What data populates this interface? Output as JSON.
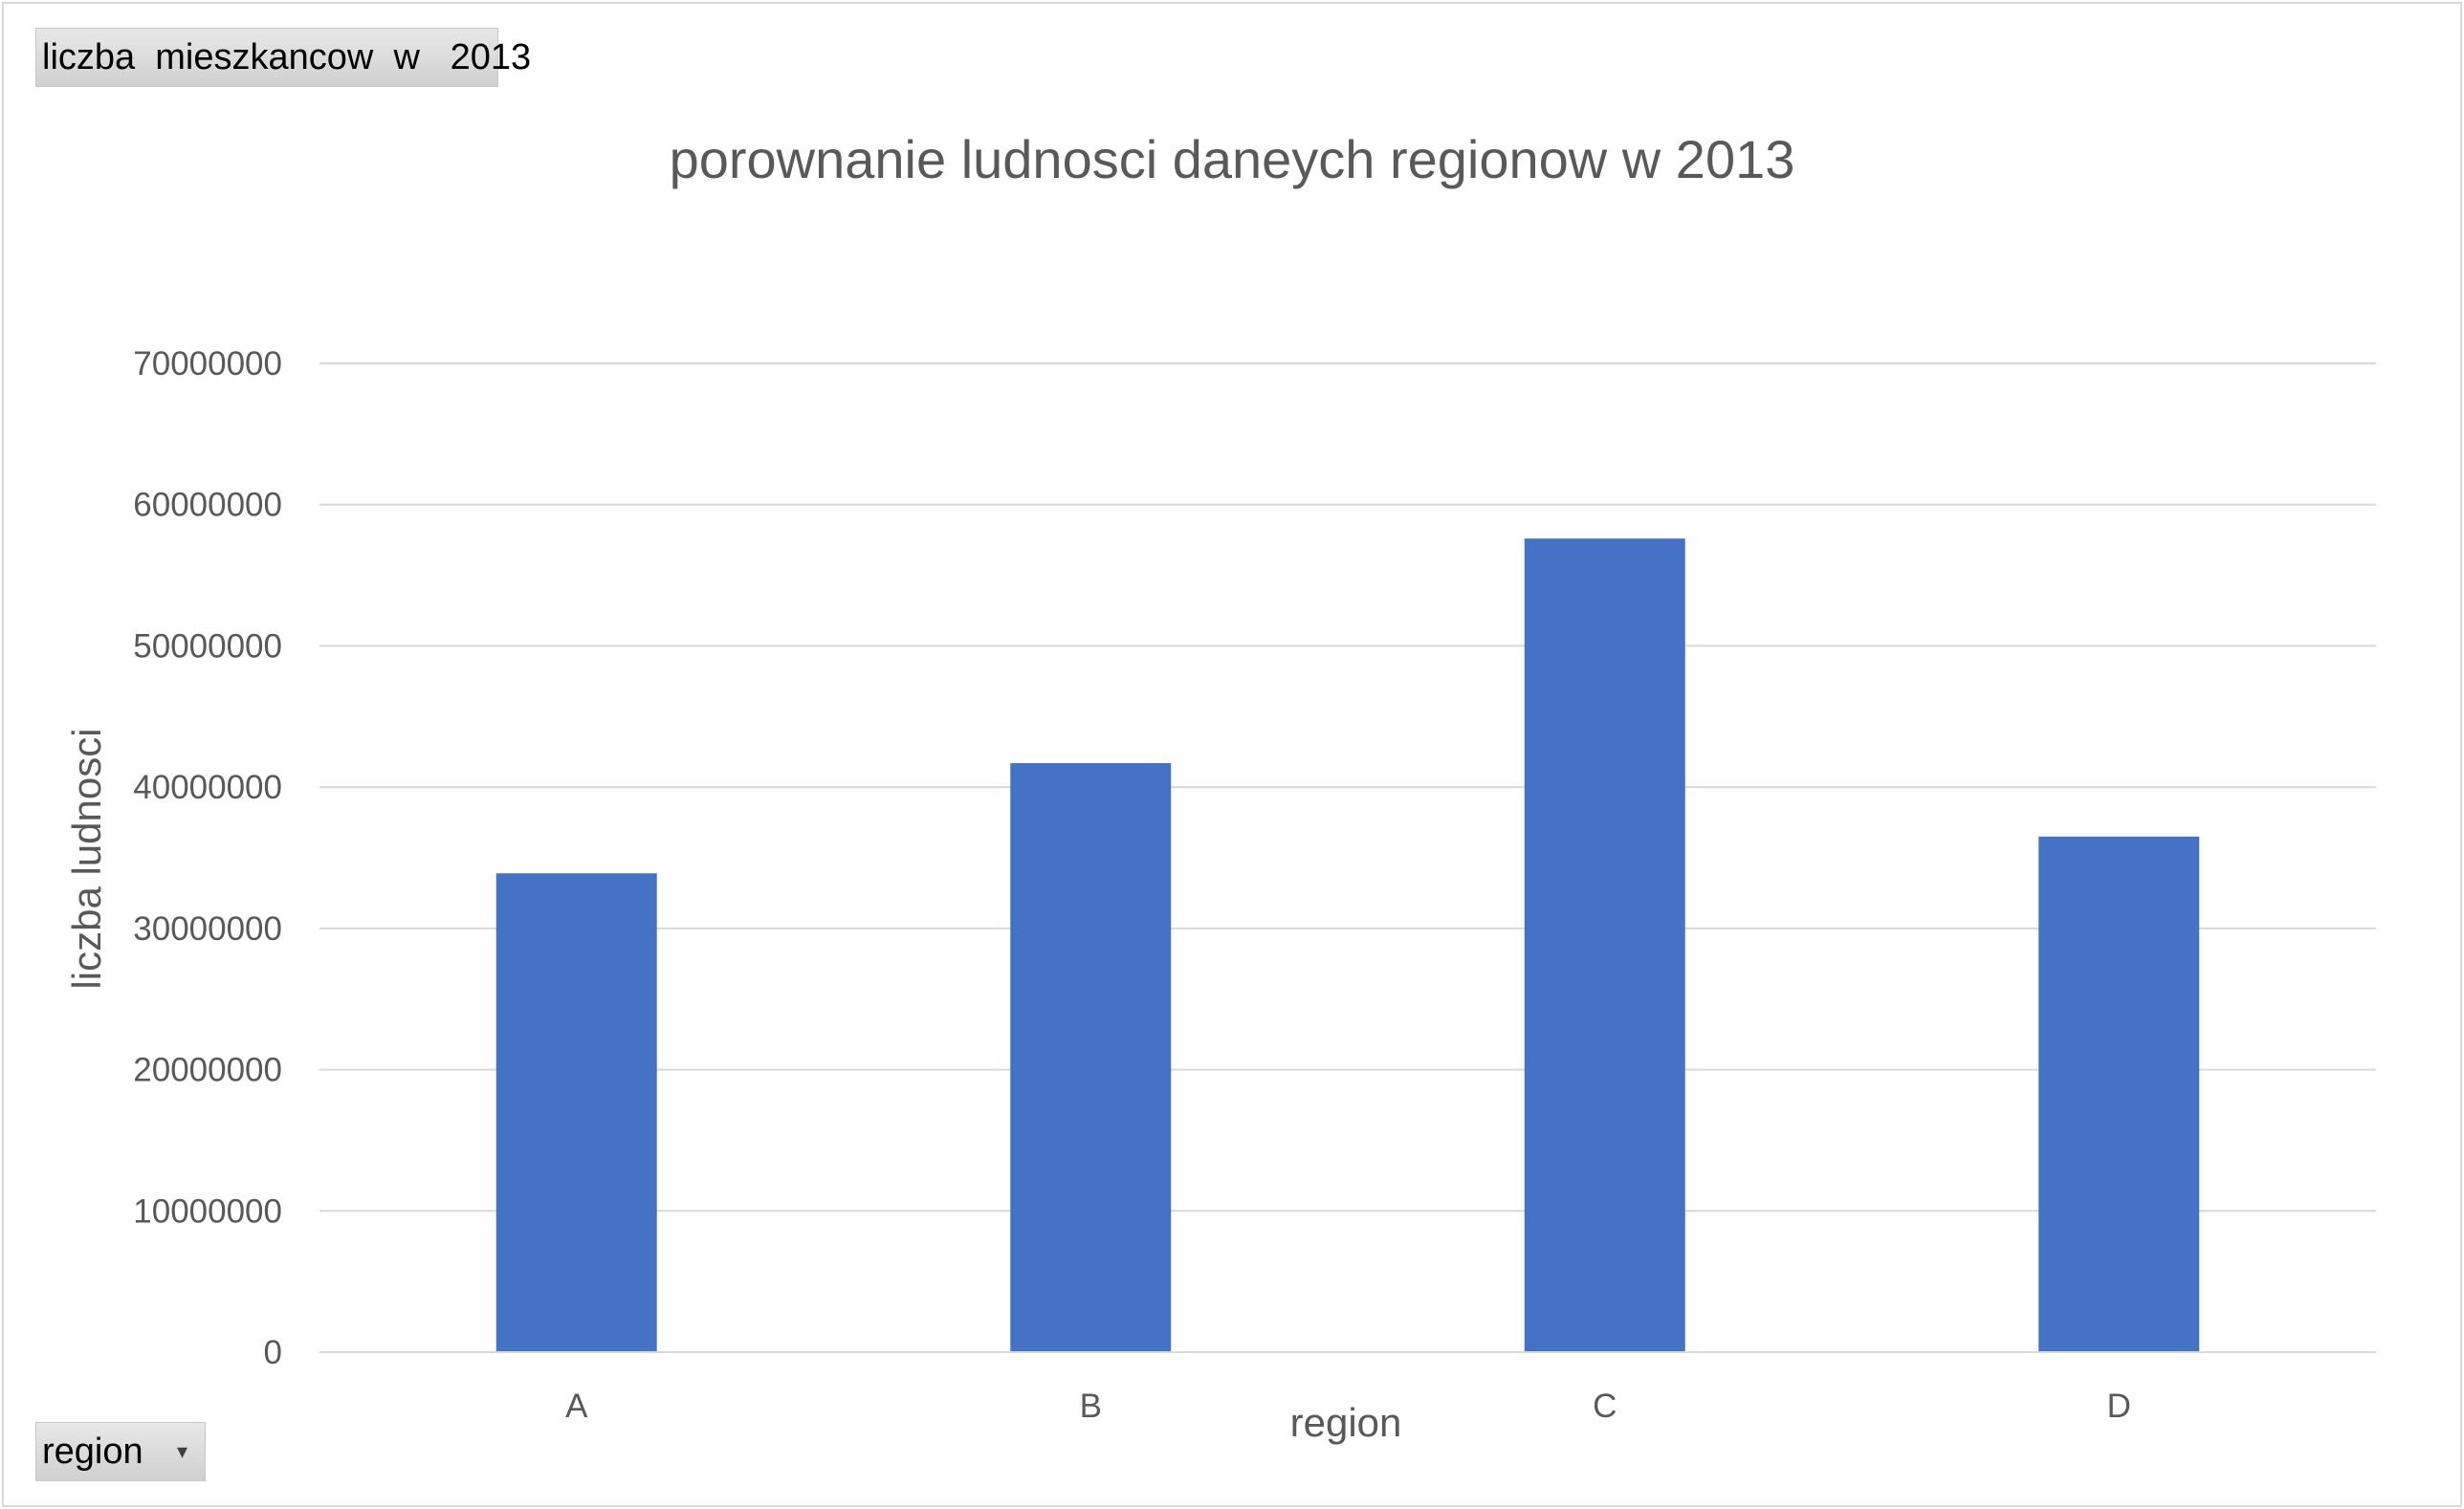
{
  "chart_data": {
    "type": "bar",
    "title": "porownanie ludnosci daneych regionow w 2013",
    "xlabel": "region",
    "ylabel": "liczba ludnosci",
    "categories": [
      "A",
      "B",
      "C",
      "D"
    ],
    "series": [
      {
        "name": "liczba mieszkancow w 2013",
        "values": [
          33900000,
          41700000,
          57600000,
          36500000
        ]
      }
    ],
    "ylim": [
      0,
      70000000
    ],
    "yticks": [
      "0",
      "10000000",
      "20000000",
      "30000000",
      "40000000",
      "50000000",
      "60000000",
      "70000000"
    ],
    "grid": true,
    "bar_color": "#4472C4",
    "grid_color": "#d9d9d9",
    "text_color": "#595959"
  },
  "pivot": {
    "value_field_label": "liczba  mieszkancow  w   2013",
    "axis_field_label": "region",
    "dropdown_icon": "dropdown-arrow-icon"
  }
}
